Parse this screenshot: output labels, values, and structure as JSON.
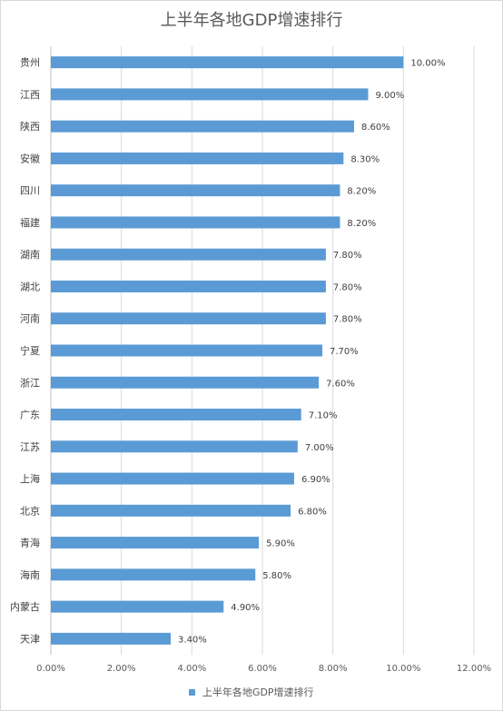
{
  "chart_data": {
    "type": "bar",
    "orientation": "horizontal",
    "title": "上半年各地GDP增速排行",
    "categories": [
      "贵州",
      "江西",
      "陕西",
      "安徽",
      "四川",
      "福建",
      "湖南",
      "湖北",
      "河南",
      "宁夏",
      "浙江",
      "广东",
      "江苏",
      "上海",
      "北京",
      "青海",
      "海南",
      "内蒙古",
      "天津"
    ],
    "series": [
      {
        "name": "上半年各地GDP增速排行",
        "values": [
          10.0,
          9.0,
          8.6,
          8.3,
          8.2,
          8.2,
          7.8,
          7.8,
          7.8,
          7.7,
          7.6,
          7.1,
          7.0,
          6.9,
          6.8,
          5.9,
          5.8,
          4.9,
          3.4
        ],
        "data_labels": [
          "10.00%",
          "9.00%",
          "8.60%",
          "8.30%",
          "8.20%",
          "8.20%",
          "7.80%",
          "7.80%",
          "7.80%",
          "7.70%",
          "7.60%",
          "7.10%",
          "7.00%",
          "6.90%",
          "6.80%",
          "5.90%",
          "5.80%",
          "4.90%",
          "3.40%"
        ],
        "color": "#5b9bd5"
      }
    ],
    "xlim": [
      0,
      12
    ],
    "x_ticks": [
      "0.00%",
      "2.00%",
      "4.00%",
      "6.00%",
      "8.00%",
      "10.00%",
      "12.00%"
    ],
    "grid": "vertical",
    "legend": "bottom",
    "gridline_color": "#d9d9d9",
    "text_color": "#595959"
  }
}
